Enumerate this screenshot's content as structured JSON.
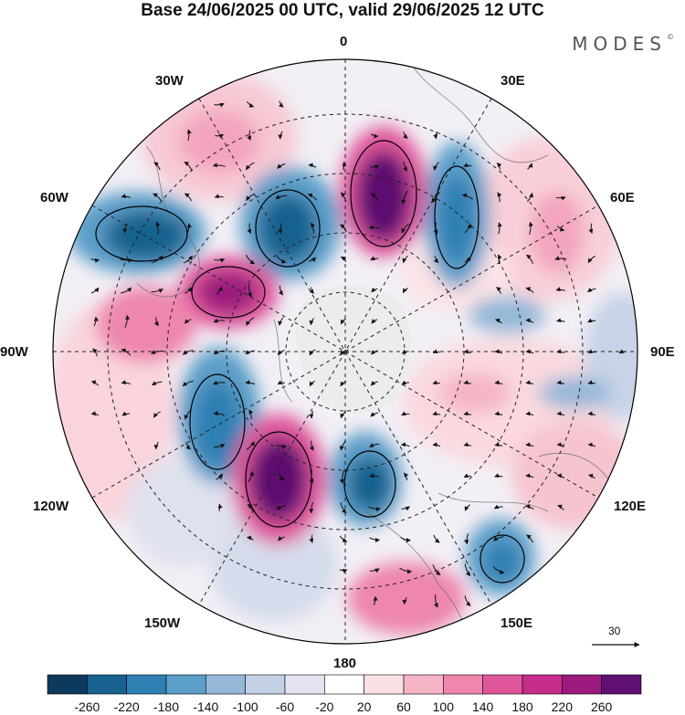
{
  "title": "Base 24/06/2025 00 UTC, valid 29/06/2025 12 UTC",
  "brand": "MODES",
  "brand_mark": "©",
  "longitude_labels": {
    "top": "0",
    "top_right": "30E",
    "upper_right": "60E",
    "right": "90E",
    "lower_right": "120E",
    "bottom_right": "150E",
    "bottom": "180",
    "bottom_left": "150W",
    "lower_left": "120W",
    "left": "90W",
    "upper_left": "60W",
    "top_left": "30W"
  },
  "vector_scale": {
    "value": "30"
  },
  "colorbar": {
    "labels": [
      "-260",
      "-220",
      "-180",
      "-140",
      "-100",
      "-60",
      "-20",
      "20",
      "60",
      "100",
      "140",
      "180",
      "220",
      "260"
    ],
    "colors": [
      "#0d3a5c",
      "#19628f",
      "#2f7fb3",
      "#5b9ec9",
      "#95b8d8",
      "#c3cfe4",
      "#e3e4f0",
      "#ffffff",
      "#fbe0e3",
      "#f5b5c6",
      "#ee86ae",
      "#e0569b",
      "#c62c89",
      "#9b1a7d",
      "#5f1070"
    ]
  }
}
